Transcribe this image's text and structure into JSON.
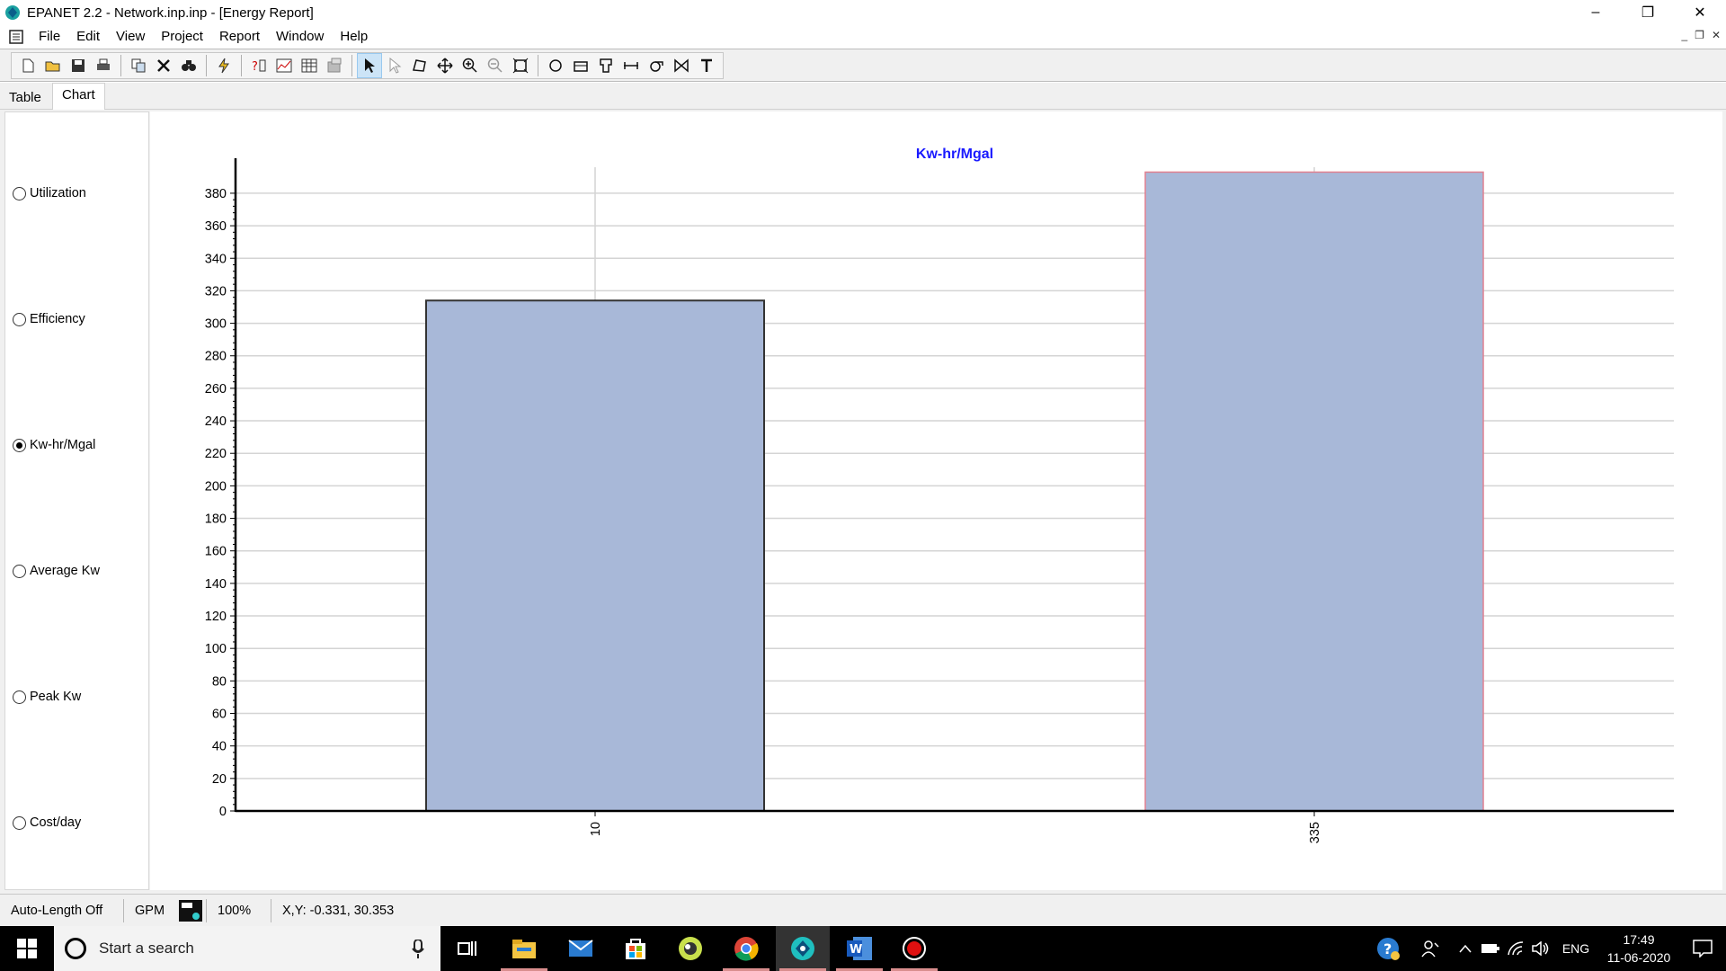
{
  "window": {
    "title": "EPANET 2.2 - Network.inp.inp - [Energy Report]",
    "minimize": "–",
    "restore": "❐",
    "close": "✕"
  },
  "menu": [
    "File",
    "Edit",
    "View",
    "Project",
    "Report",
    "Window",
    "Help"
  ],
  "mdi_controls": [
    "_",
    "❐",
    "✕"
  ],
  "tabs": {
    "table": "Table",
    "chart": "Chart",
    "active": "Chart"
  },
  "options": [
    {
      "label": "Utilization",
      "checked": false
    },
    {
      "label": "Efficiency",
      "checked": false
    },
    {
      "label": "Kw-hr/Mgal",
      "checked": true
    },
    {
      "label": "Average Kw",
      "checked": false
    },
    {
      "label": "Peak Kw",
      "checked": false
    },
    {
      "label": "Cost/day",
      "checked": false
    }
  ],
  "chart_data": {
    "type": "bar",
    "title": "Kw-hr/Mgal",
    "categories": [
      "10",
      "335"
    ],
    "values": [
      314,
      393
    ],
    "ylim": [
      0,
      396
    ],
    "yticks": [
      0,
      20,
      40,
      60,
      80,
      100,
      120,
      140,
      160,
      180,
      200,
      220,
      240,
      260,
      280,
      300,
      320,
      340,
      360,
      380
    ],
    "grid": true,
    "bar_color": "#a8b8d8",
    "title_color": "#1a1aff",
    "selected_bar_border": "#e08090",
    "xlabel": "",
    "ylabel": ""
  },
  "status": {
    "auto_length": "Auto-Length Off",
    "flow_units": "GPM",
    "zoom": "100%",
    "xy": "X,Y: -0.331, 30.353"
  },
  "taskbar": {
    "search_placeholder": "Start a search",
    "language": "ENG",
    "time": "17:49",
    "date": "11-06-2020"
  }
}
